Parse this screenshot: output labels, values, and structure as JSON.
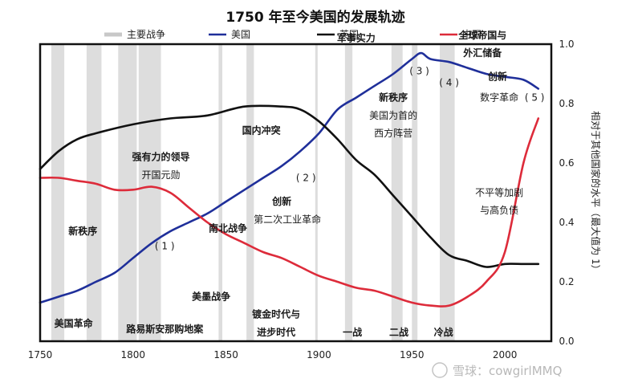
{
  "chart_data": {
    "type": "line",
    "title": "1750 年至今美国的发展轨迹",
    "legend": [
      {
        "label": "主要战争",
        "color": "#c8c8c8"
      },
      {
        "label": "美国",
        "color": "#1f2f9a"
      },
      {
        "label": "英国",
        "color": "#111111"
      },
      {
        "label": "中国",
        "color": "#dd2b3a"
      }
    ],
    "xlim": [
      1750,
      2025
    ],
    "ylim": [
      0,
      1.0
    ],
    "x_ticks": [
      "1750",
      "1800",
      "1850",
      "1900",
      "1950",
      "2000"
    ],
    "y_ticks": [
      "0.0",
      "0.2",
      "0.4",
      "0.6",
      "0.8",
      "1.0"
    ],
    "ylabel": "相对于其他国家的水平（最大值为 1）",
    "grid": false,
    "wars": [
      [
        1756,
        1763
      ],
      [
        1775,
        1783
      ],
      [
        1792,
        1802
      ],
      [
        1803,
        1815
      ],
      [
        1846,
        1848
      ],
      [
        1861,
        1865
      ],
      [
        1898,
        1899
      ],
      [
        1914,
        1918
      ],
      [
        1939,
        1945
      ],
      [
        1950,
        1953
      ],
      [
        1965,
        1973
      ]
    ],
    "series": [
      {
        "name": "美国",
        "color": "#1f2f9a",
        "x": [
          1750,
          1760,
          1770,
          1780,
          1790,
          1800,
          1810,
          1820,
          1830,
          1840,
          1850,
          1860,
          1870,
          1880,
          1890,
          1900,
          1910,
          1920,
          1930,
          1940,
          1950,
          1955,
          1960,
          1970,
          1980,
          1990,
          2000,
          2010,
          2018
        ],
        "y": [
          0.13,
          0.15,
          0.17,
          0.2,
          0.23,
          0.28,
          0.33,
          0.37,
          0.4,
          0.43,
          0.47,
          0.51,
          0.55,
          0.59,
          0.64,
          0.7,
          0.78,
          0.82,
          0.86,
          0.9,
          0.95,
          0.97,
          0.95,
          0.94,
          0.92,
          0.9,
          0.89,
          0.88,
          0.85
        ]
      },
      {
        "name": "英国",
        "color": "#111111",
        "x": [
          1750,
          1760,
          1770,
          1780,
          1800,
          1820,
          1840,
          1860,
          1880,
          1890,
          1900,
          1910,
          1920,
          1930,
          1940,
          1950,
          1960,
          1970,
          1980,
          1990,
          2000,
          2010,
          2018
        ],
        "y": [
          0.58,
          0.64,
          0.68,
          0.7,
          0.73,
          0.75,
          0.76,
          0.79,
          0.79,
          0.78,
          0.74,
          0.68,
          0.61,
          0.56,
          0.49,
          0.42,
          0.35,
          0.29,
          0.27,
          0.25,
          0.26,
          0.26,
          0.26
        ]
      },
      {
        "name": "中国",
        "color": "#dd2b3a",
        "x": [
          1750,
          1760,
          1770,
          1780,
          1790,
          1800,
          1810,
          1820,
          1830,
          1840,
          1850,
          1860,
          1870,
          1880,
          1890,
          1900,
          1910,
          1920,
          1930,
          1940,
          1950,
          1960,
          1970,
          1980,
          1990,
          2000,
          2010,
          2018
        ],
        "y": [
          0.55,
          0.55,
          0.54,
          0.53,
          0.51,
          0.51,
          0.52,
          0.5,
          0.45,
          0.4,
          0.36,
          0.33,
          0.3,
          0.28,
          0.25,
          0.22,
          0.2,
          0.18,
          0.17,
          0.15,
          0.13,
          0.12,
          0.12,
          0.15,
          0.2,
          0.3,
          0.6,
          0.75
        ]
      }
    ],
    "annotations": [
      {
        "text": "军事实力",
        "x": 1920,
        "y": 1.02,
        "bold": true
      },
      {
        "text": "全球帝国与",
        "x": 1988,
        "y": 1.03,
        "bold": true
      },
      {
        "text": "外汇储备",
        "x": 1988,
        "y": 0.97,
        "bold": true
      },
      {
        "text": "( 3 )",
        "x": 1954,
        "y": 0.91,
        "bold": false
      },
      {
        "text": "( 4 )",
        "x": 1970,
        "y": 0.87,
        "bold": false
      },
      {
        "text": "创新",
        "x": 1996,
        "y": 0.89,
        "bold": true
      },
      {
        "text": "数字革命",
        "x": 1997,
        "y": 0.82,
        "bold": false
      },
      {
        "text": "( 5 )",
        "x": 2016,
        "y": 0.82,
        "bold": false
      },
      {
        "text": "新秩序",
        "x": 1940,
        "y": 0.82,
        "bold": true
      },
      {
        "text": "美国为首的",
        "x": 1940,
        "y": 0.76,
        "bold": false
      },
      {
        "text": "西方阵营",
        "x": 1940,
        "y": 0.7,
        "bold": false
      },
      {
        "text": "国内冲突",
        "x": 1869,
        "y": 0.71,
        "bold": true
      },
      {
        "text": "强有力的领导",
        "x": 1815,
        "y": 0.62,
        "bold": true
      },
      {
        "text": "开国元勋",
        "x": 1815,
        "y": 0.56,
        "bold": false
      },
      {
        "text": "( 2 )",
        "x": 1893,
        "y": 0.55,
        "bold": false
      },
      {
        "text": "创新",
        "x": 1880,
        "y": 0.47,
        "bold": true
      },
      {
        "text": "第二次工业革命",
        "x": 1883,
        "y": 0.41,
        "bold": false
      },
      {
        "text": "南北战争",
        "x": 1851,
        "y": 0.38,
        "bold": true
      },
      {
        "text": "新秩序",
        "x": 1773,
        "y": 0.37,
        "bold": true
      },
      {
        "text": "( 1 )",
        "x": 1817,
        "y": 0.32,
        "bold": false
      },
      {
        "text": "不平等加剧",
        "x": 1997,
        "y": 0.5,
        "bold": false
      },
      {
        "text": "与高负债",
        "x": 1997,
        "y": 0.44,
        "bold": false
      },
      {
        "text": "美墨战争",
        "x": 1842,
        "y": 0.15,
        "bold": true
      },
      {
        "text": "镀金时代与",
        "x": 1877,
        "y": 0.09,
        "bold": true
      },
      {
        "text": "进步时代",
        "x": 1877,
        "y": 0.03,
        "bold": true
      },
      {
        "text": "美国革命",
        "x": 1768,
        "y": 0.06,
        "bold": true
      },
      {
        "text": "路易斯安那购地案",
        "x": 1817,
        "y": 0.04,
        "bold": true
      },
      {
        "text": "一战",
        "x": 1918,
        "y": 0.03,
        "bold": true
      },
      {
        "text": "二战",
        "x": 1943,
        "y": 0.03,
        "bold": true
      },
      {
        "text": "冷战",
        "x": 1967,
        "y": 0.03,
        "bold": true
      }
    ]
  },
  "watermark": "雪球：cowgirlMMQ"
}
